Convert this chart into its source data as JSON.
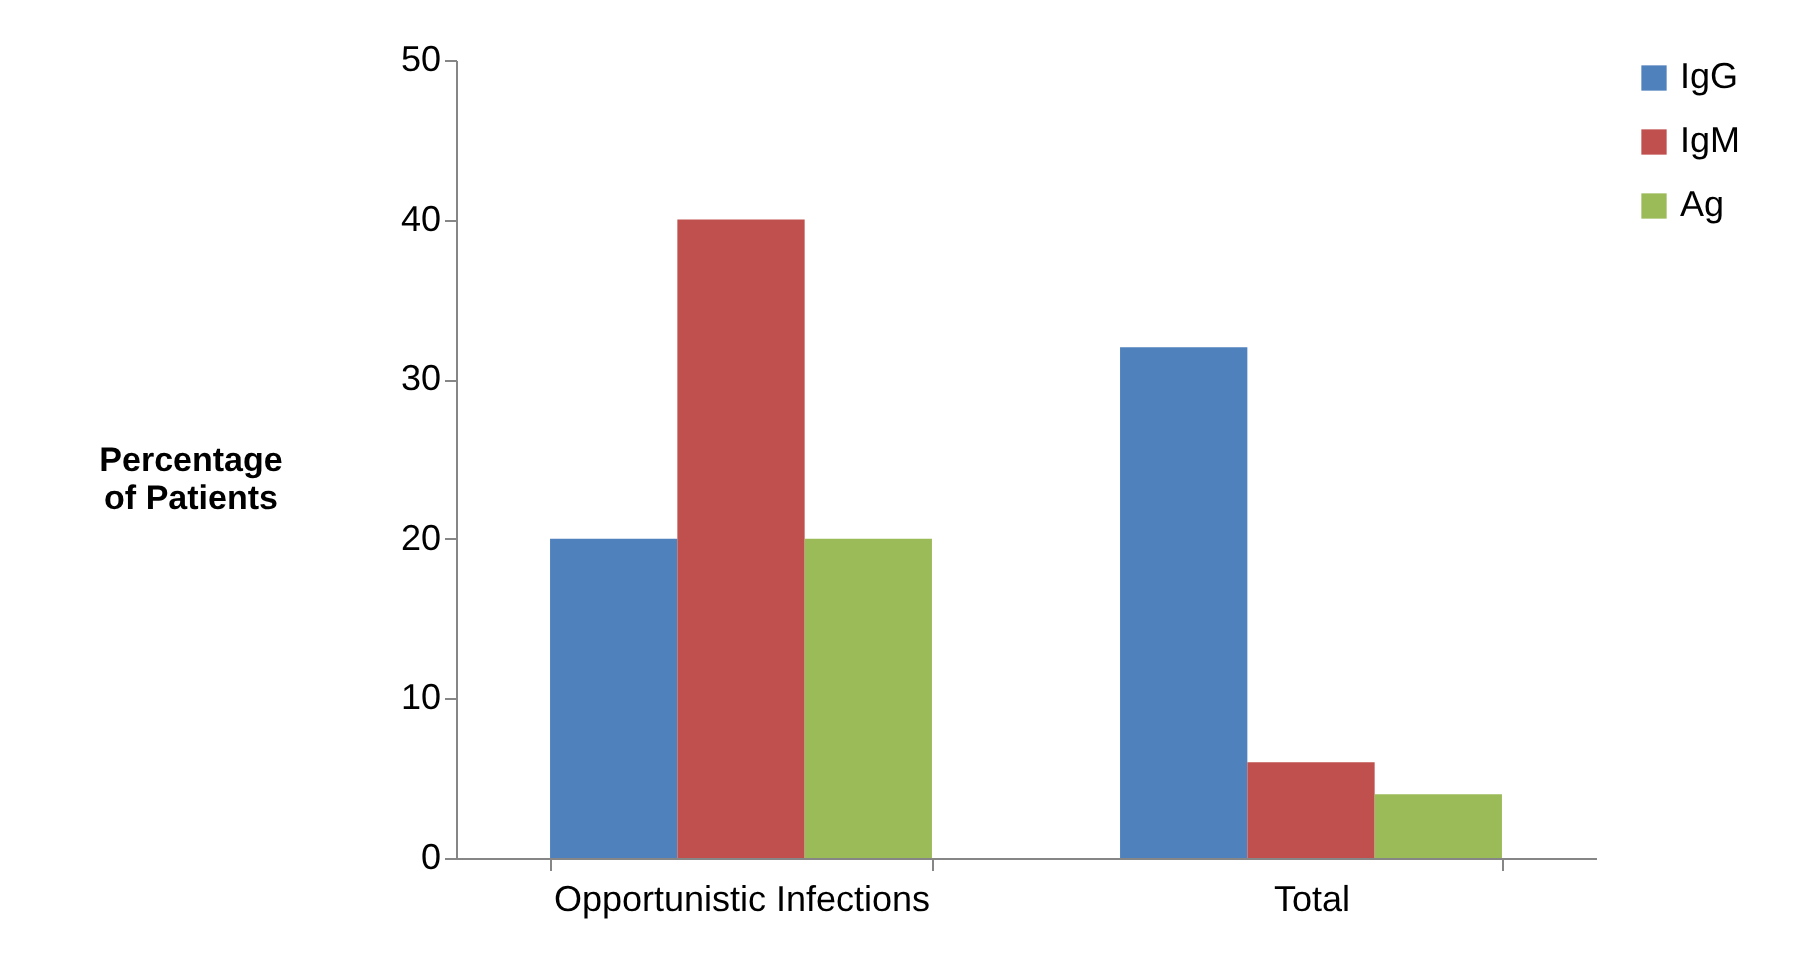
{
  "chart_data": {
    "type": "bar",
    "ylabel": "Percentage of Patients",
    "categories": [
      "Opportunistic Infections",
      "Total"
    ],
    "series": [
      {
        "name": "IgG",
        "color": "#4f81bd",
        "values": [
          20,
          32
        ]
      },
      {
        "name": "IgM",
        "color": "#c0504d",
        "values": [
          40,
          6
        ]
      },
      {
        "name": "Ag",
        "color": "#9bbb59",
        "values": [
          20,
          4
        ]
      }
    ],
    "ylim": [
      0,
      50
    ],
    "yticks": [
      0,
      10,
      20,
      30,
      40,
      50
    ],
    "grid": false,
    "legend": "right"
  }
}
